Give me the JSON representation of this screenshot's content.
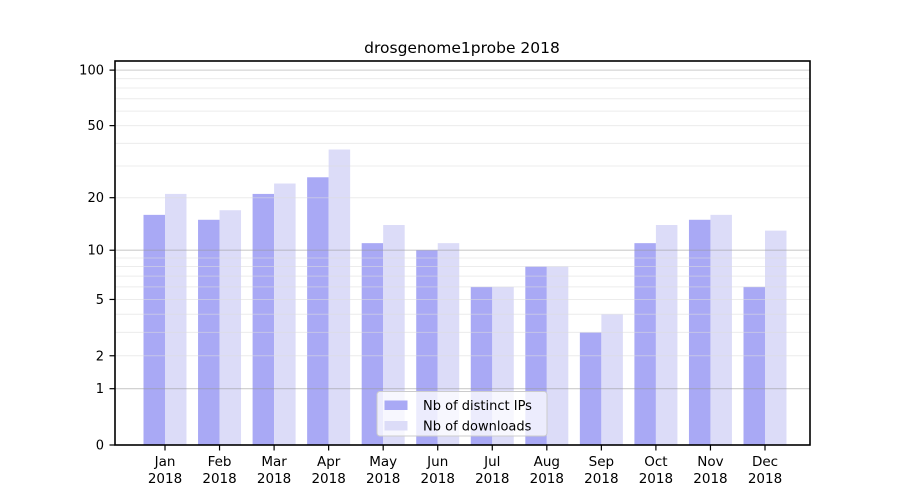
{
  "chart_data": {
    "type": "bar",
    "title": "drosgenome1probe 2018",
    "y_scale": "log1p",
    "grid": "on",
    "legend_position": "bottom-center",
    "categories": [
      "Jan",
      "Feb",
      "Mar",
      "Apr",
      "May",
      "Jun",
      "Jul",
      "Aug",
      "Sep",
      "Oct",
      "Nov",
      "Dec"
    ],
    "category_year": "2018",
    "series": [
      {
        "name": "Nb of distinct IPs",
        "color": "#a9a9f5",
        "values": [
          16,
          15,
          21,
          26,
          11,
          10,
          6,
          8,
          3,
          11,
          15,
          6
        ]
      },
      {
        "name": "Nb of downloads",
        "color": "#dcdcf8",
        "values": [
          21,
          17,
          24,
          37,
          14,
          11,
          6,
          8,
          4,
          14,
          16,
          13
        ]
      }
    ],
    "y_ticks": [
      0,
      1,
      2,
      5,
      10,
      20,
      50,
      100
    ],
    "y_major_gridlines": [
      1,
      10,
      100
    ],
    "y_minor_gridlines": [
      2,
      3,
      4,
      5,
      6,
      7,
      8,
      9,
      20,
      30,
      40,
      50,
      60,
      70,
      80,
      90
    ],
    "ylim": [
      0,
      112
    ],
    "colors": {
      "axis": "#000000",
      "text": "#000000",
      "major_grid": "#999999",
      "minor_grid": "#dcdcdc",
      "legend_bg": "#ffffff",
      "legend_border": "#cccccc"
    }
  }
}
